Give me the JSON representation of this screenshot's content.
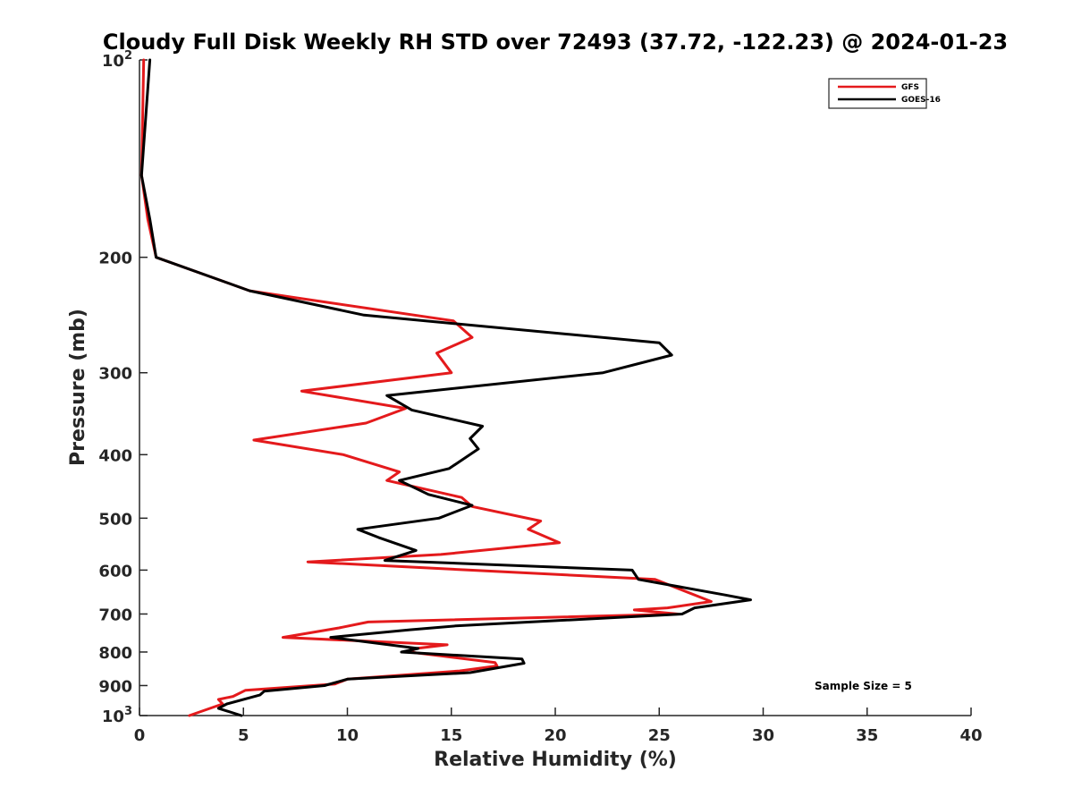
{
  "chart_data": {
    "type": "line",
    "title": "Cloudy Full Disk Weekly RH STD over 72493 (37.72, -122.23) @ 2024-01-23",
    "xlabel": "Relative Humidity (%)",
    "ylabel": "Pressure (mb)",
    "xlim": [
      0,
      40
    ],
    "ylim": [
      100,
      1000
    ],
    "y_scale": "log",
    "y_reversed": true,
    "x_ticks": [
      "0",
      "5",
      "10",
      "15",
      "20",
      "25",
      "30",
      "35",
      "40"
    ],
    "y_ticks": [
      {
        "value": 100,
        "base": "10",
        "exp": "2"
      },
      {
        "value": 200,
        "label": "200"
      },
      {
        "value": 300,
        "label": "300"
      },
      {
        "value": 400,
        "label": "400"
      },
      {
        "value": 500,
        "label": "500"
      },
      {
        "value": 600,
        "label": "600"
      },
      {
        "value": 700,
        "label": "700"
      },
      {
        "value": 800,
        "label": "800"
      },
      {
        "value": 900,
        "label": "900"
      },
      {
        "value": 1000,
        "base": "10",
        "exp": "3"
      }
    ],
    "grid": false,
    "legend_position": "top-right",
    "annotation": "Sample Size = 5",
    "series": [
      {
        "name": "GFS",
        "color": "#e41a1c",
        "points": [
          [
            0.2,
            100
          ],
          [
            0.1,
            150
          ],
          [
            0.4,
            175
          ],
          [
            0.8,
            200
          ],
          [
            5.3,
            225
          ],
          [
            7.3,
            230
          ],
          [
            15.1,
            250
          ],
          [
            16.0,
            265
          ],
          [
            14.3,
            280
          ],
          [
            15.0,
            300
          ],
          [
            7.8,
            320
          ],
          [
            12.8,
            340
          ],
          [
            10.9,
            358
          ],
          [
            5.5,
            380
          ],
          [
            9.8,
            400
          ],
          [
            12.5,
            425
          ],
          [
            11.9,
            438
          ],
          [
            15.5,
            465
          ],
          [
            16.0,
            480
          ],
          [
            19.3,
            505
          ],
          [
            18.7,
            520
          ],
          [
            20.2,
            545
          ],
          [
            14.5,
            568
          ],
          [
            8.1,
            583
          ],
          [
            24.8,
            620
          ],
          [
            27.5,
            670
          ],
          [
            25.4,
            685
          ],
          [
            23.8,
            690
          ],
          [
            25.9,
            700
          ],
          [
            11.0,
            720
          ],
          [
            9.6,
            735
          ],
          [
            6.9,
            760
          ],
          [
            14.8,
            780
          ],
          [
            13.3,
            790
          ],
          [
            13.0,
            800
          ],
          [
            17.1,
            830
          ],
          [
            17.2,
            840
          ],
          [
            15.4,
            855
          ],
          [
            10.0,
            880
          ],
          [
            9.4,
            895
          ],
          [
            5.1,
            915
          ],
          [
            4.5,
            935
          ],
          [
            3.8,
            945
          ],
          [
            4.0,
            960
          ],
          [
            2.4,
            1000
          ]
        ]
      },
      {
        "name": "GOES-16",
        "color": "#000000",
        "points": [
          [
            0.5,
            100
          ],
          [
            0.1,
            150
          ],
          [
            0.5,
            175
          ],
          [
            0.8,
            200
          ],
          [
            5.3,
            225
          ],
          [
            10.8,
            245
          ],
          [
            25.0,
            270
          ],
          [
            25.6,
            282
          ],
          [
            22.3,
            300
          ],
          [
            11.9,
            325
          ],
          [
            13.1,
            342
          ],
          [
            16.5,
            362
          ],
          [
            15.9,
            378
          ],
          [
            16.3,
            392
          ],
          [
            14.9,
            420
          ],
          [
            12.5,
            438
          ],
          [
            13.9,
            460
          ],
          [
            16.0,
            478
          ],
          [
            14.4,
            500
          ],
          [
            10.5,
            520
          ],
          [
            11.5,
            535
          ],
          [
            13.3,
            560
          ],
          [
            11.8,
            580
          ],
          [
            23.7,
            600
          ],
          [
            24.0,
            620
          ],
          [
            28.2,
            655
          ],
          [
            29.4,
            666
          ],
          [
            26.7,
            685
          ],
          [
            26.1,
            700
          ],
          [
            15.2,
            730
          ],
          [
            13.0,
            740
          ],
          [
            9.2,
            760
          ],
          [
            13.4,
            790
          ],
          [
            12.6,
            800
          ],
          [
            18.4,
            820
          ],
          [
            18.5,
            832
          ],
          [
            15.9,
            860
          ],
          [
            10.0,
            880
          ],
          [
            8.9,
            900
          ],
          [
            6.0,
            918
          ],
          [
            5.8,
            930
          ],
          [
            4.2,
            960
          ],
          [
            3.8,
            975
          ],
          [
            4.9,
            1000
          ]
        ]
      }
    ]
  }
}
